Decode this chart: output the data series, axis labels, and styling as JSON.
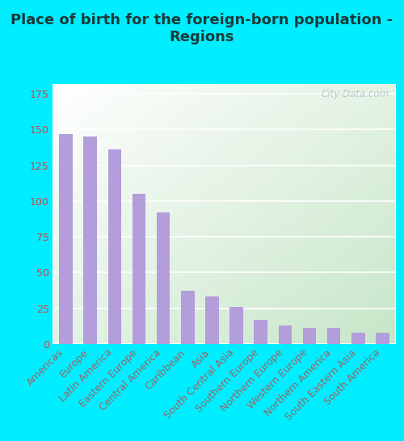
{
  "title": "Place of birth for the foreign-born population -\nRegions",
  "categories": [
    "Americas",
    "Europe",
    "Latin America",
    "Eastern Europe",
    "Central America",
    "Caribbean",
    "Asia",
    "South Central Asia",
    "Southern Europe",
    "Northern Europe",
    "Western Europe",
    "Northern America",
    "South Eastern Asia",
    "South America"
  ],
  "values": [
    147,
    145,
    136,
    105,
    92,
    37,
    33,
    26,
    17,
    13,
    11,
    11,
    8,
    8
  ],
  "bar_color": "#b39ddb",
  "bg_outer": "#00eeff",
  "bg_plot_top_left": "#ffffff",
  "bg_plot_bottom_right": "#c8e6c9",
  "yticks": [
    0,
    25,
    50,
    75,
    100,
    125,
    150,
    175
  ],
  "ylim": [
    0,
    182
  ],
  "title_fontsize": 13,
  "tick_fontsize": 9,
  "ytick_color": "#cc4444",
  "xtick_color": "#996666",
  "watermark": "City-Data.com"
}
